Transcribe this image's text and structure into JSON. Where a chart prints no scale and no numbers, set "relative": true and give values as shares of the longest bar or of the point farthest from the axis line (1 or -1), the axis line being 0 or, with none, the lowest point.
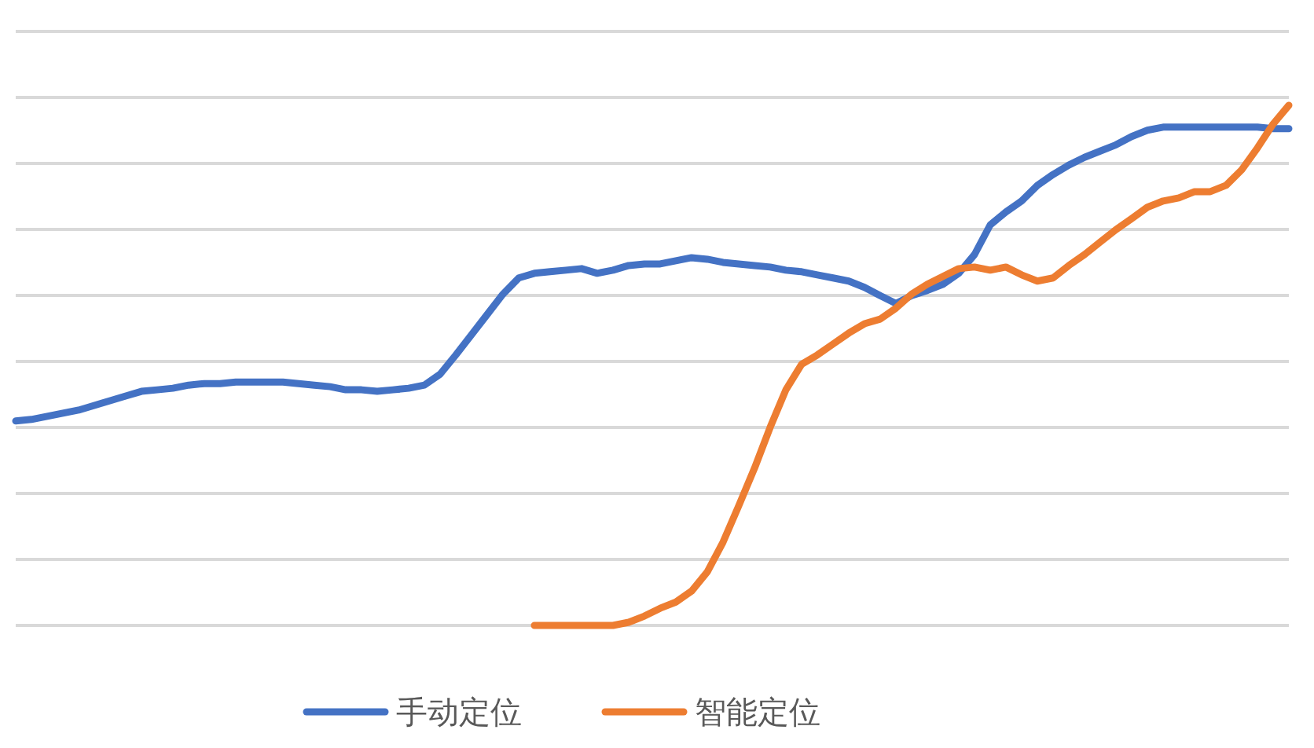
{
  "chart_data": {
    "type": "line",
    "relative": true,
    "grid": true,
    "legend": "bottom",
    "marker": "none",
    "line_style": "solid",
    "categories": [
      null,
      null,
      null,
      null,
      null,
      null,
      null,
      null,
      null,
      null,
      null,
      null,
      null,
      null,
      null,
      null,
      null,
      null,
      null,
      null,
      null,
      null,
      null,
      null,
      null,
      null,
      null,
      null,
      null,
      null,
      null,
      null,
      null,
      null,
      null,
      null,
      null,
      null,
      null,
      null,
      null,
      null,
      null,
      null,
      null,
      null,
      null,
      null,
      null,
      null,
      null,
      null,
      null,
      null,
      null,
      null,
      null,
      null,
      null,
      null,
      null,
      null,
      null,
      null,
      null,
      null,
      null,
      null,
      null,
      null,
      null,
      null,
      null,
      null,
      null,
      null,
      null,
      null,
      null,
      null,
      null,
      null
    ],
    "series": [
      {
        "name": "手动定位",
        "color": "#4472c4",
        "values": [
          0.393,
          0.396,
          0.402,
          0.408,
          0.414,
          0.423,
          0.432,
          0.441,
          0.45,
          0.453,
          0.456,
          0.462,
          0.465,
          0.465,
          0.468,
          0.468,
          0.468,
          0.468,
          0.465,
          0.462,
          0.459,
          0.453,
          0.453,
          0.45,
          0.453,
          0.456,
          0.462,
          0.483,
          0.52,
          0.559,
          0.598,
          0.637,
          0.668,
          0.677,
          0.68,
          0.683,
          0.686,
          0.677,
          0.683,
          0.692,
          0.695,
          0.695,
          0.701,
          0.707,
          0.704,
          0.698,
          0.695,
          0.692,
          0.689,
          0.683,
          0.68,
          0.674,
          0.668,
          0.662,
          0.65,
          0.634,
          0.619,
          0.634,
          0.644,
          0.656,
          0.677,
          0.713,
          0.77,
          0.795,
          0.816,
          0.846,
          0.867,
          0.885,
          0.9,
          0.912,
          0.924,
          0.94,
          0.952,
          0.958,
          0.958,
          0.958,
          0.958,
          0.958,
          0.958,
          0.958,
          0.955,
          0.955
        ]
      },
      {
        "name": "智能定位",
        "color": "#ed7d31",
        "values": [
          null,
          null,
          null,
          null,
          null,
          null,
          null,
          null,
          null,
          null,
          null,
          null,
          null,
          null,
          null,
          null,
          null,
          null,
          null,
          null,
          null,
          null,
          null,
          null,
          null,
          null,
          null,
          null,
          null,
          null,
          null,
          null,
          null,
          0,
          0,
          0,
          0,
          0,
          0,
          0.006,
          0.018,
          0.033,
          0.045,
          0.066,
          0.103,
          0.16,
          0.23,
          0.302,
          0.381,
          0.453,
          0.502,
          0.52,
          0.541,
          0.562,
          0.58,
          0.589,
          0.61,
          0.637,
          0.656,
          0.671,
          0.686,
          0.689,
          0.683,
          0.689,
          0.674,
          0.662,
          0.668,
          0.692,
          0.713,
          0.737,
          0.761,
          0.782,
          0.804,
          0.816,
          0.822,
          0.834,
          0.834,
          0.846,
          0.876,
          0.918,
          0.964,
          1
        ]
      }
    ]
  }
}
